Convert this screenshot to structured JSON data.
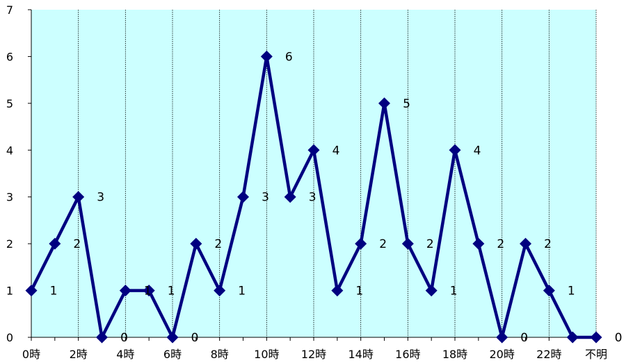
{
  "chart_data": {
    "type": "line",
    "title": "",
    "xlabel": "",
    "ylabel": "",
    "ylim": [
      0,
      7
    ],
    "y_ticks": [
      0,
      1,
      2,
      3,
      4,
      5,
      6,
      7
    ],
    "x_tick_labels": [
      "0時",
      "2時",
      "4時",
      "6時",
      "8時",
      "10時",
      "12時",
      "14時",
      "16時",
      "18時",
      "20時",
      "22時",
      "不明"
    ],
    "categories": [
      "0時",
      "1時",
      "2時",
      "3時",
      "4時",
      "5時",
      "6時",
      "7時",
      "8時",
      "9時",
      "10時",
      "11時",
      "12時",
      "13時",
      "14時",
      "15時",
      "16時",
      "17時",
      "18時",
      "19時",
      "20時",
      "21時",
      "22時",
      "23時",
      "不明"
    ],
    "series": [
      {
        "values": [
          1,
          2,
          3,
          0,
          1,
          1,
          0,
          2,
          1,
          3,
          6,
          3,
          4,
          1,
          2,
          5,
          2,
          1,
          4,
          2,
          0,
          2,
          1,
          0,
          0
        ]
      }
    ],
    "data_labels_shown_index": [
      0,
      1,
      2,
      3,
      4,
      5,
      6,
      7,
      8,
      9,
      10,
      11,
      12,
      13,
      14,
      15,
      16,
      17,
      18,
      19,
      20,
      21,
      22,
      24
    ],
    "grid": "vertical",
    "legend": "none",
    "colors": {
      "plot_background": "#ccffff",
      "line": "#000080",
      "marker": "#000080",
      "grid": "#000000",
      "axis": "#000000"
    }
  }
}
